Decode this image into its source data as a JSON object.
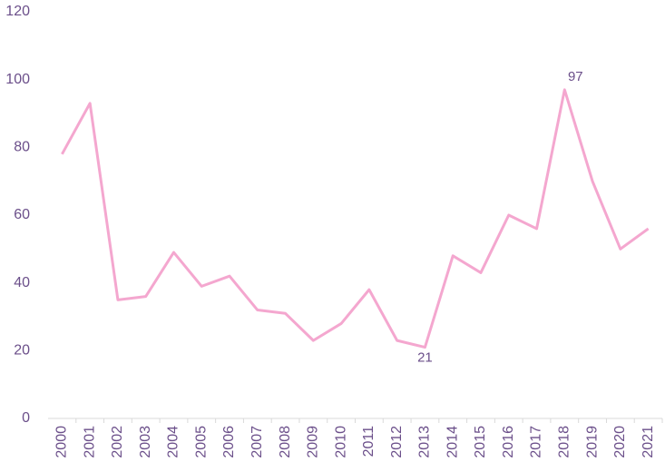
{
  "chart_data": {
    "type": "line",
    "categories": [
      "2000",
      "2001",
      "2002",
      "2003",
      "2004",
      "2005",
      "2006",
      "2007",
      "2008",
      "2009",
      "2010",
      "2011",
      "2012",
      "2013",
      "2014",
      "2015",
      "2016",
      "2017",
      "2018",
      "2019",
      "2020",
      "2021"
    ],
    "values": [
      78,
      93,
      35,
      36,
      49,
      39,
      42,
      32,
      31,
      23,
      28,
      38,
      23,
      21,
      48,
      43,
      60,
      56,
      97,
      70,
      50,
      56
    ],
    "value_labels": [
      null,
      null,
      null,
      null,
      null,
      null,
      null,
      null,
      null,
      null,
      null,
      null,
      null,
      "21",
      null,
      null,
      null,
      null,
      "97",
      null,
      null,
      null
    ],
    "color": "#f4a7cf",
    "ylim": [
      0,
      120
    ],
    "yticks": [
      0,
      20,
      40,
      60,
      80,
      100,
      120
    ],
    "grid": false
  }
}
